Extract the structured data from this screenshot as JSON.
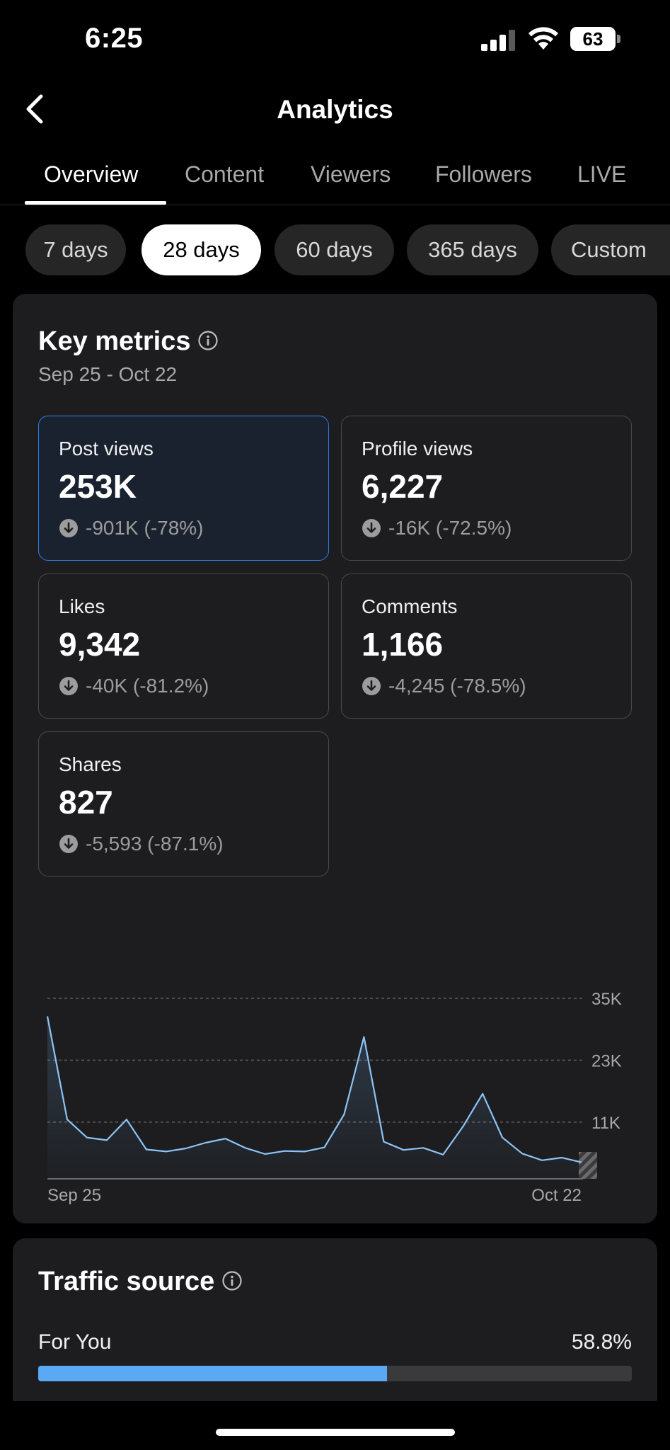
{
  "status_bar": {
    "time": "6:25",
    "battery": "63"
  },
  "header": {
    "title": "Analytics"
  },
  "tabs": [
    {
      "label": "Overview",
      "active": true
    },
    {
      "label": "Content",
      "active": false
    },
    {
      "label": "Viewers",
      "active": false
    },
    {
      "label": "Followers",
      "active": false
    },
    {
      "label": "LIVE",
      "active": false
    }
  ],
  "ranges": [
    {
      "label": "7 days",
      "active": false
    },
    {
      "label": "28 days",
      "active": true
    },
    {
      "label": "60 days",
      "active": false
    },
    {
      "label": "365 days",
      "active": false
    },
    {
      "label": "Custom",
      "active": false
    }
  ],
  "key_metrics": {
    "title": "Key metrics",
    "date_range": "Sep 25 - Oct 22",
    "metrics": [
      {
        "label": "Post views",
        "value": "253K",
        "delta": "-901K (-78%)",
        "selected": true
      },
      {
        "label": "Profile views",
        "value": "6,227",
        "delta": "-16K (-72.5%)",
        "selected": false
      },
      {
        "label": "Likes",
        "value": "9,342",
        "delta": "-40K (-81.2%)",
        "selected": false
      },
      {
        "label": "Comments",
        "value": "1,166",
        "delta": "-4,245 (-78.5%)",
        "selected": false
      },
      {
        "label": "Shares",
        "value": "827",
        "delta": "-5,593 (-87.1%)",
        "selected": false
      }
    ]
  },
  "chart_data": {
    "type": "area",
    "x_start_label": "Sep 25",
    "x_end_label": "Oct 22",
    "y_ticks": [
      "11K",
      "23K",
      "35K"
    ],
    "y_tick_values": [
      11000,
      23000,
      35000
    ],
    "ylim": [
      0,
      35000
    ],
    "grid": true,
    "values": [
      31500,
      11500,
      8000,
      7500,
      11500,
      5700,
      5300,
      5900,
      7000,
      7800,
      6000,
      4800,
      5400,
      5300,
      6100,
      12500,
      27500,
      7200,
      5600,
      6000,
      4700,
      10100,
      16500,
      8000,
      4900,
      3600,
      4100,
      3200
    ],
    "line_color": "#8cc4f5",
    "partial_last_day": true
  },
  "traffic_source": {
    "title": "Traffic source",
    "rows": [
      {
        "label": "For You",
        "value": "58.8%",
        "fraction": 0.588
      }
    ],
    "bar_color": "#5aa9f5"
  }
}
